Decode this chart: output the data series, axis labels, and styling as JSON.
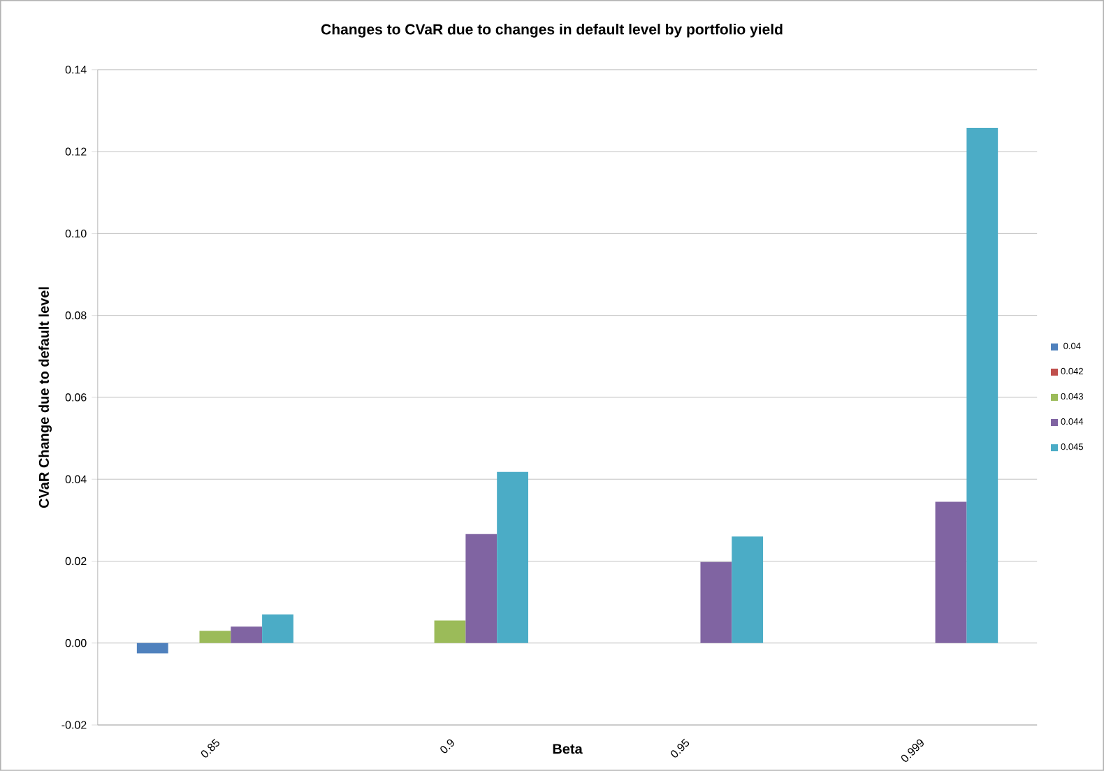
{
  "chart_data": {
    "type": "bar",
    "title": "Changes to CVaR due to changes in default level by portfolio yield",
    "xlabel": "Beta",
    "ylabel": "CVaR  Change due to  default level",
    "categories": [
      "0.85",
      "0.9",
      "0.95",
      "0.999"
    ],
    "series": [
      {
        "name": "0.04",
        "color": "#4f81bd",
        "values": [
          -0.0025,
          0,
          0,
          0
        ]
      },
      {
        "name": "0.042",
        "color": "#c0504d",
        "values": [
          0,
          0,
          0,
          0
        ]
      },
      {
        "name": "0.043",
        "color": "#9bbb59",
        "values": [
          0.003,
          0.0055,
          0,
          0
        ]
      },
      {
        "name": "0.044",
        "color": "#8064a2",
        "values": [
          0.004,
          0.0266,
          0.0198,
          0.0345
        ]
      },
      {
        "name": "0.045",
        "color": "#4bacc6",
        "values": [
          0.007,
          0.0418,
          0.026,
          0.1258
        ]
      }
    ],
    "ylim": [
      -0.02,
      0.14
    ],
    "yticks": [
      {
        "value": -0.02,
        "label": "-0.02"
      },
      {
        "value": 0,
        "label": "0.00"
      },
      {
        "value": 0.02,
        "label": "0.02"
      },
      {
        "value": 0.04,
        "label": "0.04"
      },
      {
        "value": 0.06,
        "label": "0.06"
      },
      {
        "value": 0.08,
        "label": "0.08"
      },
      {
        "value": 0.1,
        "label": "0.10"
      },
      {
        "value": 0.12,
        "label": "0.12"
      },
      {
        "value": 0.14,
        "label": "0.14"
      }
    ],
    "grid": "y",
    "legend": "right"
  }
}
